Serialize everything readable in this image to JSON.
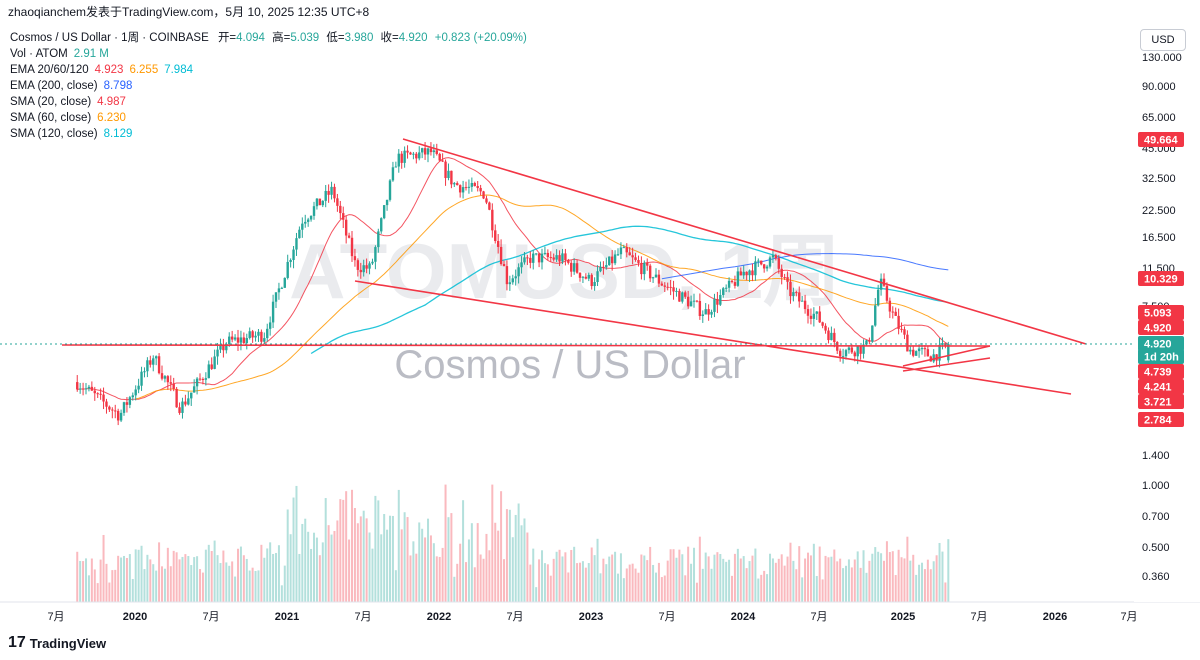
{
  "header": {
    "text": "zhaoqianchem发表于TradingView.com，5月 10, 2025 12:35 UTC+8"
  },
  "legend": {
    "title": "Cosmos / US Dollar · 1周 · COINBASE",
    "ohlc": {
      "open_label": "开=",
      "open": "4.094",
      "high_label": "高=",
      "high": "5.039",
      "low_label": "低=",
      "low": "3.980",
      "close_label": "收=",
      "close": "4.920",
      "change": "+0.823 (+20.09%)"
    },
    "indicators": [
      {
        "label": "Vol · ATOM",
        "values": [
          {
            "v": "2.91 M",
            "color": "#26a69a"
          }
        ]
      },
      {
        "label": "EMA 20/60/120",
        "values": [
          {
            "v": "4.923",
            "color": "#f23645"
          },
          {
            "v": "6.255",
            "color": "#ff9800"
          },
          {
            "v": "7.984",
            "color": "#00bcd4"
          }
        ]
      },
      {
        "label": "EMA (200, close)",
        "values": [
          {
            "v": "8.798",
            "color": "#2962ff"
          }
        ]
      },
      {
        "label": "SMA (20, close)",
        "values": [
          {
            "v": "4.987",
            "color": "#f23645"
          }
        ]
      },
      {
        "label": "SMA (60, close)",
        "values": [
          {
            "v": "6.230",
            "color": "#ff9800"
          }
        ]
      },
      {
        "label": "SMA (120, close)",
        "values": [
          {
            "v": "8.129",
            "color": "#00bcd4"
          }
        ]
      }
    ]
  },
  "watermark": {
    "symbol": "ATOMUSD, 1周",
    "name": "Cosmos / US Dollar"
  },
  "currency_button": "USD",
  "footer": {
    "brand": "TradingView",
    "logo": "17"
  },
  "chart_data": {
    "type": "candlestick",
    "symbol": "ATOMUSD",
    "interval": "1周",
    "exchange": "COINBASE",
    "y_scale": "log",
    "y_ticks": [
      "130.000",
      "90.000",
      "65.000",
      "45.000",
      "32.500",
      "22.500",
      "16.500",
      "11.500",
      "7.500",
      "4.920",
      "1.400",
      "1.000",
      "0.700",
      "0.500",
      "0.360"
    ],
    "x_ticks": [
      "7月",
      "2020",
      "7月",
      "2021",
      "7月",
      "2022",
      "7月",
      "2023",
      "7月",
      "2024",
      "7月",
      "2025",
      "7月",
      "2026",
      "7月"
    ],
    "price_labels": [
      {
        "text": "49.664",
        "color": "#f23645"
      },
      {
        "text": "10.329",
        "color": "#f23645"
      },
      {
        "text": "5.093",
        "color": "#f23645"
      },
      {
        "text": "4.920",
        "color": "#f23645"
      },
      {
        "text": "4.920",
        "color": "#26a69a"
      },
      {
        "text": "1d 20h",
        "color": "#26a69a"
      },
      {
        "text": "4.739",
        "color": "#f23645"
      },
      {
        "text": "4.241",
        "color": "#f23645"
      },
      {
        "text": "3.721",
        "color": "#f23645"
      },
      {
        "text": "2.784",
        "color": "#f23645"
      }
    ],
    "key_prices": [
      {
        "date": 2019.62,
        "close": 3.2
      },
      {
        "date": 2019.9,
        "close": 2.2
      },
      {
        "date": 2020.12,
        "close": 4.3
      },
      {
        "date": 2020.3,
        "close": 2.4
      },
      {
        "date": 2020.6,
        "close": 5.0
      },
      {
        "date": 2020.85,
        "close": 5.5
      },
      {
        "date": 2021.1,
        "close": 20.0
      },
      {
        "date": 2021.3,
        "close": 28.0
      },
      {
        "date": 2021.45,
        "close": 12.0
      },
      {
        "date": 2021.55,
        "close": 11.5
      },
      {
        "date": 2021.72,
        "close": 40.0
      },
      {
        "date": 2021.95,
        "close": 43.0
      },
      {
        "date": 2022.1,
        "close": 30.0
      },
      {
        "date": 2022.3,
        "close": 27.0
      },
      {
        "date": 2022.45,
        "close": 10.0
      },
      {
        "date": 2022.6,
        "close": 13.0
      },
      {
        "date": 2022.8,
        "close": 13.0
      },
      {
        "date": 2023.0,
        "close": 10.0
      },
      {
        "date": 2023.2,
        "close": 14.0
      },
      {
        "date": 2023.45,
        "close": 10.0
      },
      {
        "date": 2023.75,
        "close": 7.0
      },
      {
        "date": 2024.0,
        "close": 11.0
      },
      {
        "date": 2024.2,
        "close": 13.0
      },
      {
        "date": 2024.3,
        "close": 9.0
      },
      {
        "date": 2024.5,
        "close": 6.5
      },
      {
        "date": 2024.65,
        "close": 4.5
      },
      {
        "date": 2024.82,
        "close": 4.8
      },
      {
        "date": 2024.9,
        "close": 10.0
      },
      {
        "date": 2025.0,
        "close": 6.5
      },
      {
        "date": 2025.1,
        "close": 4.6
      },
      {
        "date": 2025.25,
        "close": 4.3
      },
      {
        "date": 2025.36,
        "close": 4.92
      }
    ]
  }
}
